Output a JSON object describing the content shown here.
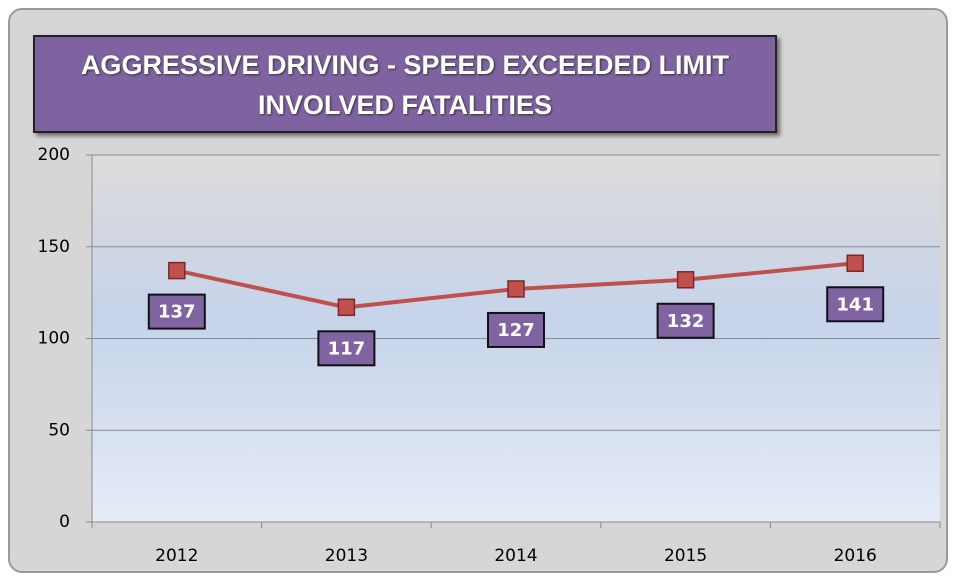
{
  "chart_data": {
    "type": "line",
    "title": "AGGRESSIVE DRIVING - SPEED EXCEEDED LIMIT\nINVOLVED FATALITIES",
    "categories": [
      "2012",
      "2013",
      "2014",
      "2015",
      "2016"
    ],
    "values": [
      137,
      117,
      127,
      132,
      141
    ],
    "color": "#c0504d",
    "label_color": "#8064a2",
    "ylim": [
      0,
      200
    ],
    "yticks": [
      0,
      50,
      100,
      150,
      200
    ],
    "grid": true
  }
}
